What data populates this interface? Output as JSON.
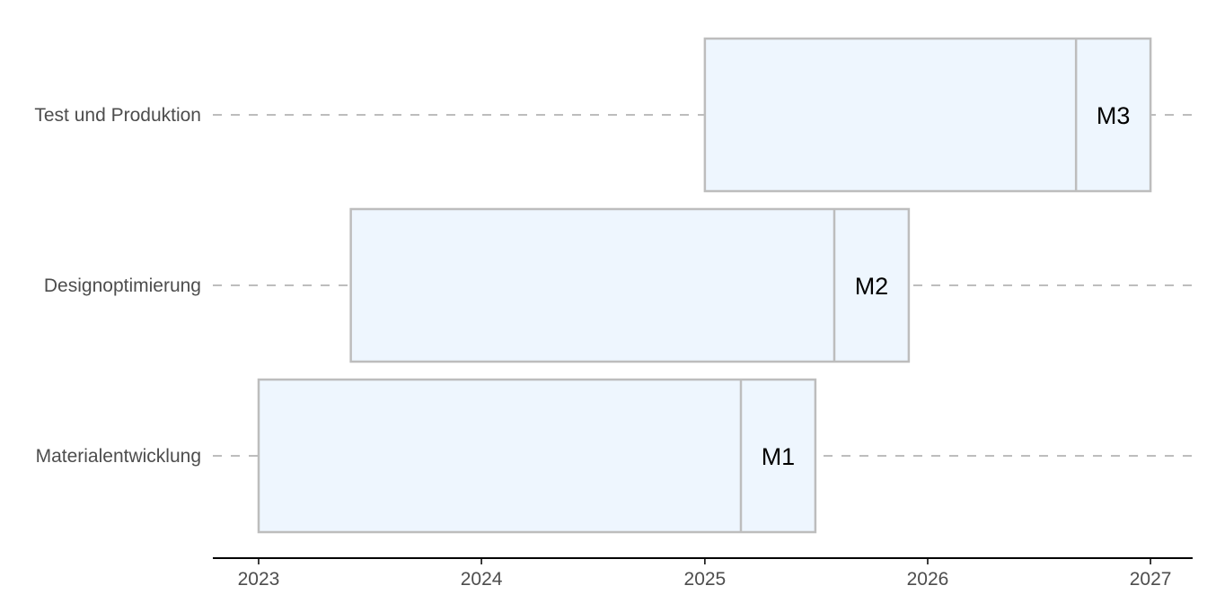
{
  "chart_data": {
    "type": "bar",
    "orientation": "horizontal",
    "title": "",
    "xlabel": "",
    "ylabel": "",
    "categories": [
      "Materialentwicklung",
      "Designoptimierung",
      "Test und Produktion"
    ],
    "tasks": [
      {
        "name": "Materialentwicklung",
        "start": "2023-01-01",
        "milestone": "2025-03-01",
        "end": "2025-07-01",
        "milestone_label": "M1"
      },
      {
        "name": "Designoptimierung",
        "start": "2023-06-01",
        "milestone": "2025-08-01",
        "end": "2025-12-01",
        "milestone_label": "M2"
      },
      {
        "name": "Test und Produktion",
        "start": "2025-01-01",
        "milestone": "2026-09-01",
        "end": "2027-01-01",
        "milestone_label": "M3"
      }
    ],
    "x_ticks": [
      "2023",
      "2024",
      "2025",
      "2026",
      "2027"
    ],
    "xlim": [
      "2022-10-18",
      "2027-03-11"
    ],
    "grid": "horizontal dashed",
    "legend": "none",
    "colors": {
      "bar_fill": "#eef6fe",
      "bar_stroke": "#bdbdbd",
      "gridline": "#bdbdbd",
      "axis": "#000000",
      "text": "#4d4d4d"
    }
  }
}
